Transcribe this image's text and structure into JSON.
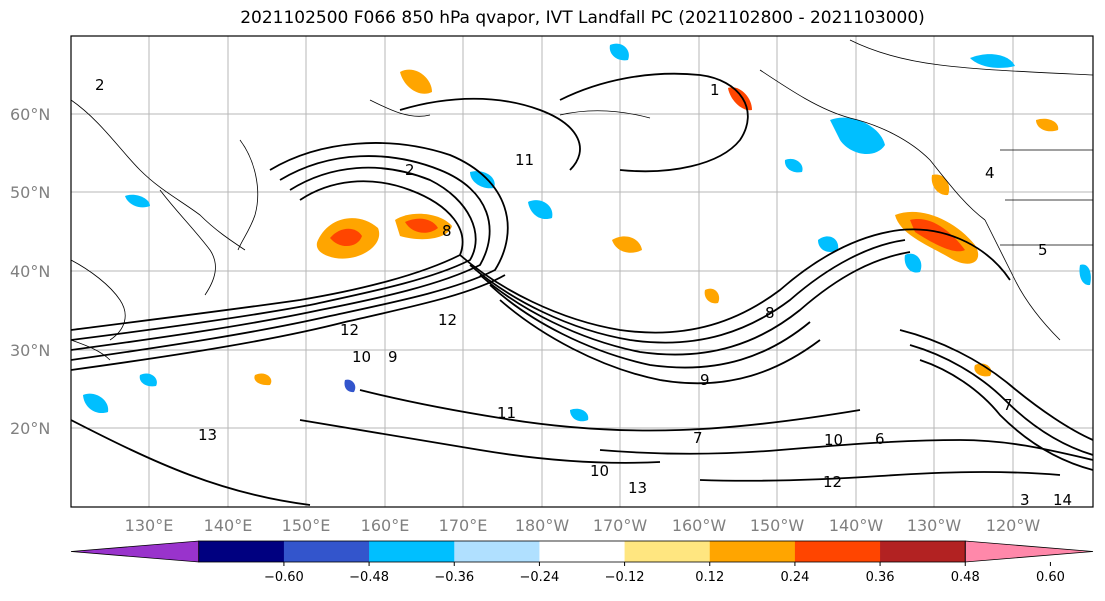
{
  "map": {
    "title": "2021102500 F066 850 hPa qvapor, IVT Landfall PC (2021102800 - 2021103000)",
    "lat_labels": [
      "60°N",
      "50°N",
      "40°N",
      "30°N",
      "20°N"
    ],
    "lon_labels": [
      "130°E",
      "140°E",
      "150°E",
      "160°E",
      "170°E",
      "180°W",
      "170°W",
      "160°W",
      "150°W",
      "140°W",
      "130°W",
      "120°W"
    ],
    "contour_labels": [
      "2",
      "2",
      "8",
      "11",
      "12",
      "9",
      "10",
      "9",
      "8",
      "12",
      "11",
      "13",
      "7",
      "10",
      "10",
      "6",
      "13",
      "5",
      "7",
      "1",
      "14",
      "3",
      "12",
      "4"
    ]
  },
  "colorbar": {
    "ticks": [
      "−0.60",
      "−0.48",
      "−0.36",
      "−0.24",
      "−0.12",
      "0.12",
      "0.24",
      "0.36",
      "0.48",
      "0.60"
    ],
    "colors": [
      "#9933cc",
      "#000080",
      "#3355cc",
      "#00bfff",
      "#b0e0ff",
      "#ffffff",
      "#ffe680",
      "#ffa500",
      "#ff4500",
      "#b22222",
      "#ff88aa"
    ]
  }
}
